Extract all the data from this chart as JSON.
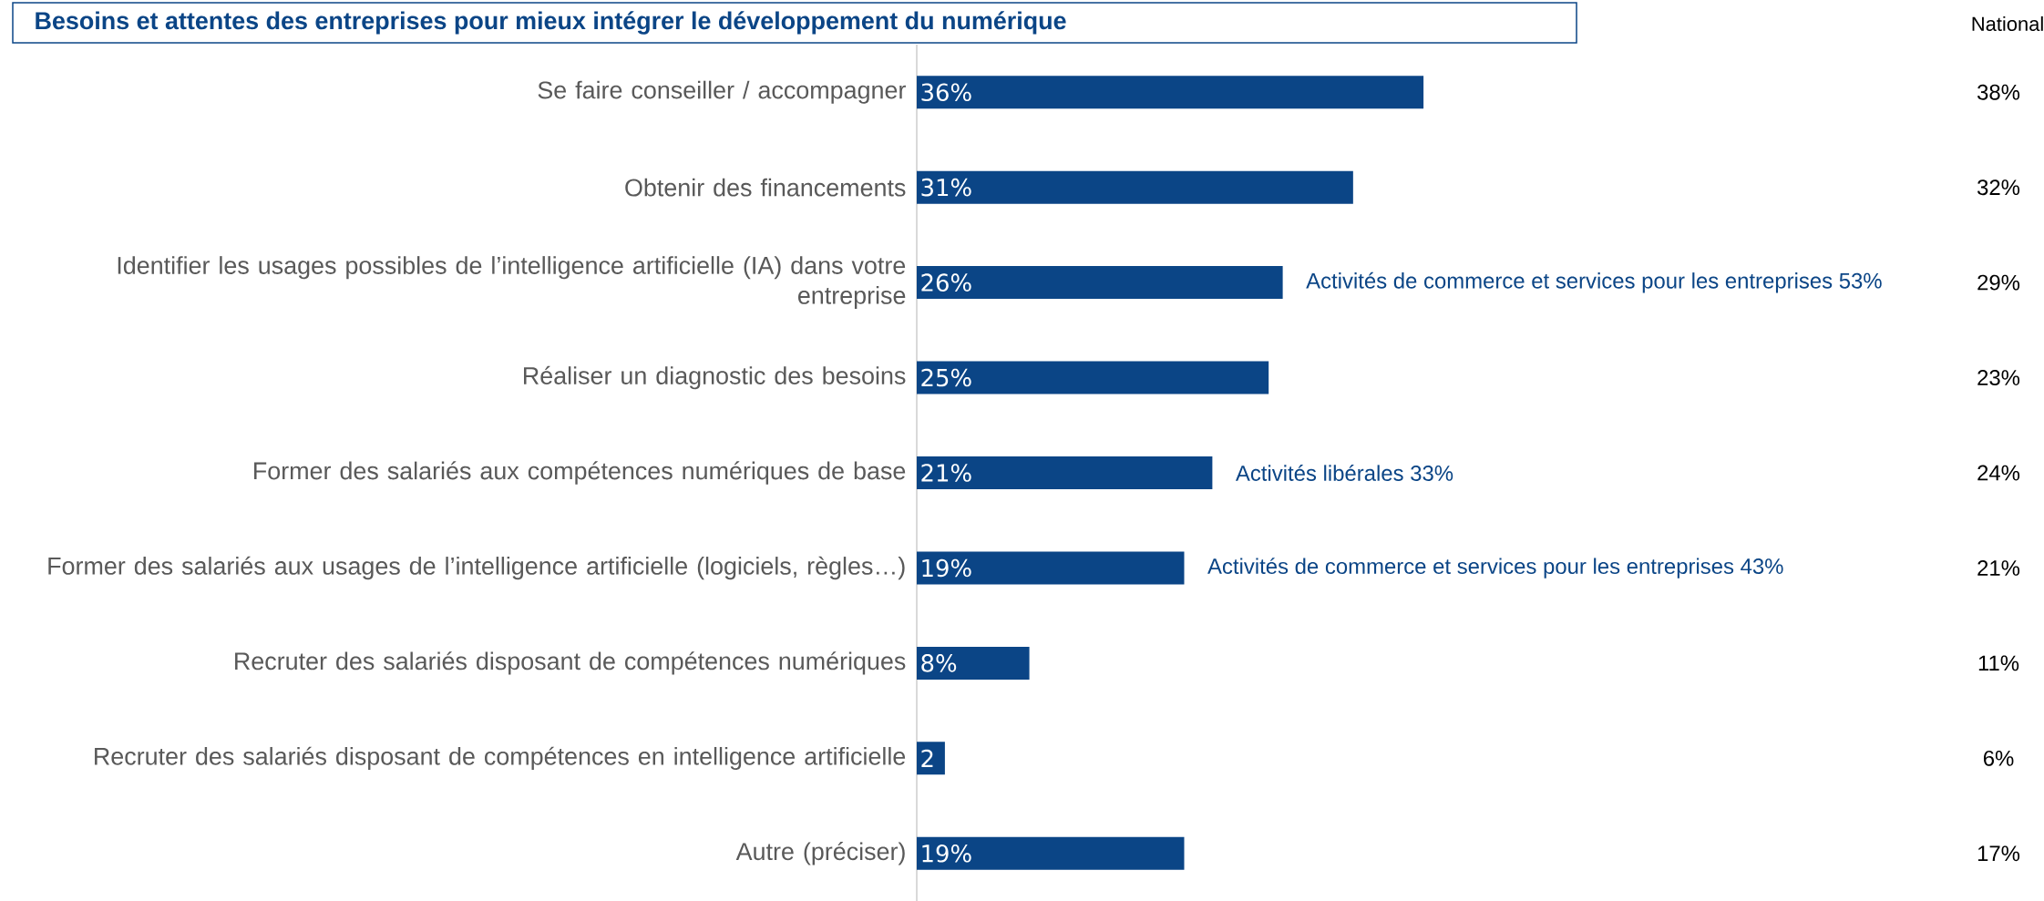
{
  "chart_data": {
    "type": "bar",
    "orientation": "horizontal",
    "title": "Besoins et attentes des entreprises pour mieux intégrer le développement du numérique",
    "categories": [
      "Se faire conseiller / accompagner",
      "Obtenir des financements",
      "Identifier les usages possibles de l’intelligence artificielle (IA) dans votre entreprise",
      "Réaliser un diagnostic des besoins",
      "Former des salariés aux compétences numériques de base",
      "Former des salariés aux usages de l’intelligence artificielle (logiciels, règles…)",
      "Recruter des salariés disposant de compétences numériques",
      "Recruter des salariés disposant de compétences en intelligence artificielle",
      "Autre (préciser)"
    ],
    "values": [
      36,
      31,
      26,
      25,
      21,
      19,
      8,
      2,
      19
    ],
    "value_labels": [
      "36%",
      "31%",
      "26%",
      "25%",
      "21%",
      "19%",
      "8%",
      "2",
      "19%"
    ],
    "color": "#0b4586",
    "annotations": [
      "National",
      "38%",
      "32%",
      "29%",
      "23%",
      "24%",
      "21%",
      "11%",
      "6%",
      "17%",
      "Activités de commerce et services pour les entreprises 53%",
      "Activités libérales 33%",
      "Activités de commerce et services pour les entreprises 43%"
    ]
  }
}
